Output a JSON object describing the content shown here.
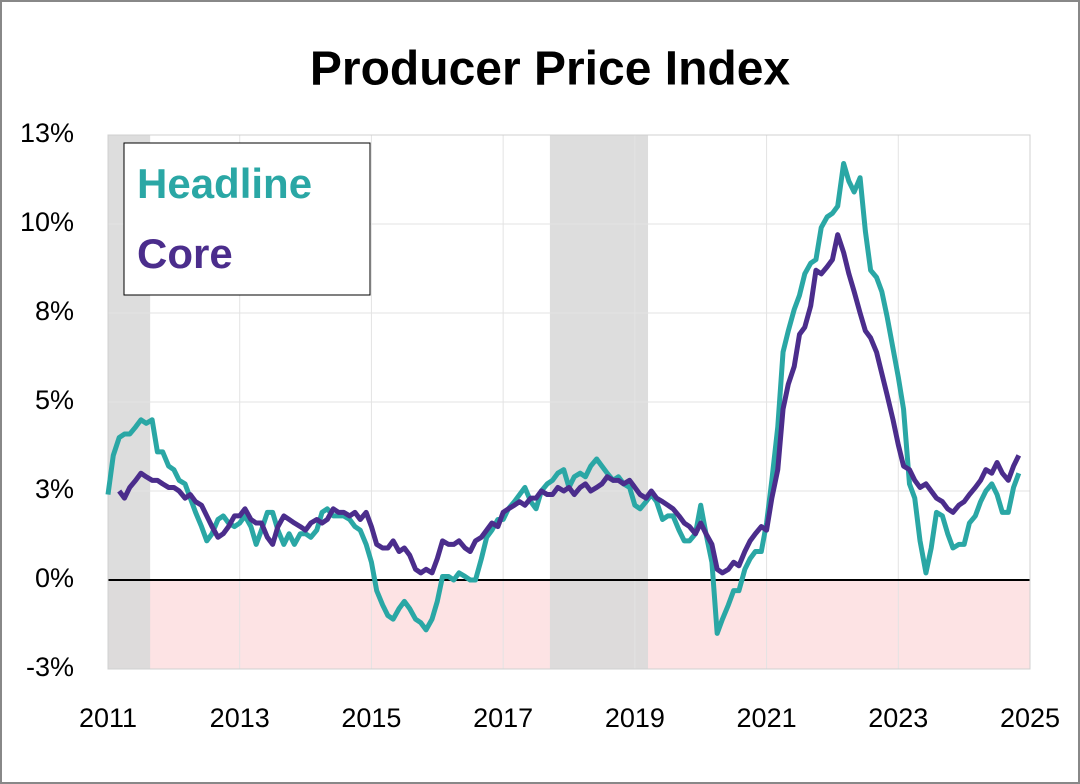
{
  "chart_data": {
    "type": "line",
    "title": "Producer Price Index",
    "x": [
      2011.0,
      2011.08,
      2011.17,
      2011.25,
      2011.33,
      2011.42,
      2011.5,
      2011.58,
      2011.67,
      2011.75,
      2011.83,
      2011.92,
      2012.0,
      2012.08,
      2012.17,
      2012.25,
      2012.33,
      2012.42,
      2012.5,
      2012.58,
      2012.67,
      2012.75,
      2012.83,
      2012.92,
      2013.0,
      2013.08,
      2013.17,
      2013.25,
      2013.33,
      2013.42,
      2013.5,
      2013.58,
      2013.67,
      2013.75,
      2013.83,
      2013.92,
      2014.0,
      2014.08,
      2014.17,
      2014.25,
      2014.33,
      2014.42,
      2014.5,
      2014.58,
      2014.67,
      2014.75,
      2014.83,
      2014.92,
      2015.0,
      2015.08,
      2015.17,
      2015.25,
      2015.33,
      2015.42,
      2015.5,
      2015.58,
      2015.67,
      2015.75,
      2015.83,
      2015.92,
      2016.0,
      2016.08,
      2016.17,
      2016.25,
      2016.33,
      2016.42,
      2016.5,
      2016.58,
      2016.67,
      2016.75,
      2016.83,
      2016.92,
      2017.0,
      2017.08,
      2017.17,
      2017.25,
      2017.33,
      2017.42,
      2017.5,
      2017.58,
      2017.67,
      2017.75,
      2017.83,
      2017.92,
      2018.0,
      2018.08,
      2018.17,
      2018.25,
      2018.33,
      2018.42,
      2018.5,
      2018.58,
      2018.67,
      2018.75,
      2018.83,
      2018.92,
      2019.0,
      2019.08,
      2019.17,
      2019.25,
      2019.33,
      2019.42,
      2019.5,
      2019.58,
      2019.67,
      2019.75,
      2019.83,
      2019.92,
      2020.0,
      2020.08,
      2020.17,
      2020.25,
      2020.33,
      2020.42,
      2020.5,
      2020.58,
      2020.67,
      2020.75,
      2020.83,
      2020.92,
      2021.0,
      2021.08,
      2021.17,
      2021.25,
      2021.33,
      2021.42,
      2021.5,
      2021.58,
      2021.67,
      2021.75,
      2021.83,
      2021.92,
      2022.0,
      2022.08,
      2022.17,
      2022.25,
      2022.33,
      2022.42,
      2022.5,
      2022.58,
      2022.67,
      2022.75,
      2022.83,
      2022.92,
      2023.0,
      2023.08,
      2023.17,
      2023.25,
      2023.33,
      2023.42,
      2023.5,
      2023.58,
      2023.67,
      2023.75,
      2023.83,
      2023.92,
      2024.0,
      2024.08,
      2024.17,
      2024.25,
      2024.33,
      2024.42,
      2024.5,
      2024.58,
      2024.67,
      2024.75,
      2024.83
    ],
    "series": [
      {
        "name": "Headline",
        "color": "#2aa7a5",
        "values": [
          2.4,
          3.5,
          4.0,
          4.1,
          4.1,
          4.3,
          4.5,
          4.4,
          4.5,
          3.6,
          3.6,
          3.2,
          3.1,
          2.8,
          2.7,
          2.3,
          1.9,
          1.5,
          1.1,
          1.3,
          1.7,
          1.8,
          1.6,
          1.5,
          1.6,
          1.8,
          1.5,
          1.0,
          1.4,
          1.9,
          1.9,
          1.4,
          1.0,
          1.3,
          1.0,
          1.3,
          1.3,
          1.2,
          1.4,
          1.9,
          2.0,
          1.8,
          1.8,
          1.8,
          1.7,
          1.5,
          1.4,
          1.0,
          0.5,
          -0.3,
          -0.7,
          -1.0,
          -1.1,
          -0.8,
          -0.6,
          -0.8,
          -1.1,
          -1.2,
          -1.4,
          -1.1,
          -0.6,
          0.1,
          0.1,
          0.0,
          0.2,
          0.1,
          0.0,
          0.0,
          0.6,
          1.2,
          1.4,
          1.7,
          1.7,
          2.0,
          2.2,
          2.4,
          2.6,
          2.2,
          2.0,
          2.5,
          2.7,
          2.8,
          3.0,
          3.1,
          2.6,
          2.9,
          3.0,
          2.9,
          3.2,
          3.4,
          3.2,
          3.0,
          2.8,
          2.9,
          2.7,
          2.6,
          2.1,
          2.0,
          2.2,
          2.4,
          2.2,
          1.7,
          1.8,
          1.8,
          1.4,
          1.1,
          1.1,
          1.3,
          2.1,
          1.3,
          0.5,
          -1.5,
          -1.1,
          -0.7,
          -0.3,
          -0.3,
          0.3,
          0.6,
          0.8,
          0.8,
          1.6,
          2.8,
          4.3,
          6.4,
          7.0,
          7.6,
          8.0,
          8.6,
          8.9,
          9.0,
          9.9,
          10.2,
          10.3,
          10.5,
          11.7,
          11.2,
          10.9,
          11.3,
          9.8,
          8.7,
          8.5,
          8.1,
          7.4,
          6.5,
          5.7,
          4.8,
          2.7,
          2.3,
          1.1,
          0.2,
          0.9,
          1.9,
          1.8,
          1.3,
          0.9,
          1.0,
          1.0,
          1.6,
          1.8,
          2.2,
          2.5,
          2.7,
          2.4,
          1.9,
          1.9,
          2.6,
          3.0
        ]
      },
      {
        "name": "Core",
        "color": "#4b2d8c",
        "values": [
          null,
          null,
          2.5,
          2.3,
          2.6,
          2.8,
          3.0,
          2.9,
          2.8,
          2.8,
          2.7,
          2.6,
          2.6,
          2.5,
          2.3,
          2.4,
          2.2,
          2.1,
          1.8,
          1.5,
          1.2,
          1.3,
          1.5,
          1.8,
          1.8,
          2.0,
          1.7,
          1.6,
          1.6,
          1.2,
          1.0,
          1.5,
          1.8,
          1.7,
          1.6,
          1.5,
          1.4,
          1.6,
          1.7,
          1.6,
          1.7,
          2.0,
          1.9,
          1.9,
          1.8,
          1.9,
          1.7,
          1.9,
          1.5,
          1.0,
          0.9,
          0.9,
          1.1,
          0.8,
          0.9,
          0.7,
          0.3,
          0.2,
          0.3,
          0.2,
          0.6,
          1.1,
          1.0,
          1.0,
          1.1,
          0.9,
          0.8,
          1.1,
          1.2,
          1.4,
          1.6,
          1.5,
          1.9,
          2.0,
          2.1,
          2.2,
          2.1,
          2.3,
          2.3,
          2.5,
          2.4,
          2.4,
          2.6,
          2.5,
          2.6,
          2.4,
          2.6,
          2.7,
          2.5,
          2.6,
          2.7,
          2.9,
          2.8,
          2.8,
          2.7,
          2.8,
          2.6,
          2.4,
          2.3,
          2.5,
          2.3,
          2.2,
          2.1,
          2.0,
          1.8,
          1.6,
          1.5,
          1.3,
          1.6,
          1.3,
          1.0,
          0.3,
          0.2,
          0.3,
          0.5,
          0.4,
          0.8,
          1.1,
          1.3,
          1.5,
          1.4,
          2.3,
          3.1,
          4.8,
          5.5,
          6.0,
          6.9,
          7.1,
          7.7,
          8.7,
          8.6,
          8.8,
          9.0,
          9.7,
          9.2,
          8.6,
          8.1,
          7.5,
          7.0,
          6.8,
          6.4,
          5.8,
          5.2,
          4.5,
          3.8,
          3.2,
          3.1,
          2.8,
          2.6,
          2.7,
          2.5,
          2.3,
          2.2,
          2.0,
          1.9,
          2.1,
          2.2,
          2.4,
          2.6,
          2.8,
          3.1,
          3.0,
          3.3,
          3.0,
          2.8,
          3.2,
          3.5
        ]
      }
    ],
    "xlim": [
      2011,
      2025
    ],
    "xticks": [
      2011,
      2013,
      2015,
      2017,
      2019,
      2021,
      2023,
      2025
    ],
    "ylim": [
      -2.5,
      12.5
    ],
    "yticks": [
      {
        "value": -2.5,
        "label": "-3%"
      },
      {
        "value": 0,
        "label": "0%"
      },
      {
        "value": 2.5,
        "label": "3%"
      },
      {
        "value": 5,
        "label": "5%"
      },
      {
        "value": 7.5,
        "label": "8%"
      },
      {
        "value": 10,
        "label": "10%"
      },
      {
        "value": 12.5,
        "label": "13%"
      }
    ],
    "shaded_ranges": [
      [
        2011,
        2011.64
      ],
      [
        2017.71,
        2019.2
      ]
    ],
    "grid": true,
    "legend": "upper left"
  }
}
